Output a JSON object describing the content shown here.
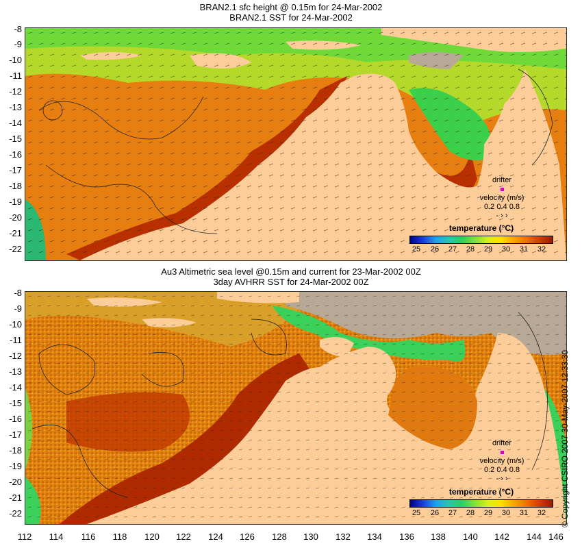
{
  "top": {
    "title_line1": "BRAN2.1 sfc height @ 0.15m for 24-Mar-2002",
    "title_line2": "BRAN2.1 SST for 24-Mar-2002",
    "y_labels": [
      "-8",
      "-9",
      "-10",
      "-11",
      "-12",
      "-13",
      "-14",
      "-15",
      "-16",
      "-17",
      "-18",
      "-19",
      "-20",
      "-21",
      "-22"
    ],
    "legend_title": "temperature (°C)",
    "legend_ticks": [
      "25",
      "26",
      "27",
      "28",
      "29",
      "30",
      "31",
      "32"
    ],
    "drifter_label": "drifter",
    "velocity_label": "velocity (m/s)",
    "velocity_values": "0.2 0.4 0.8"
  },
  "bottom": {
    "title_line1": "Au3 Altimetric sea level  @0.15m and current for 23-Mar-2002 00Z",
    "title_line2": "3day AVHRR SST for 24-Mar-2002 00Z",
    "y_labels": [
      "-8",
      "-9",
      "-10",
      "-11",
      "-12",
      "-13",
      "-14",
      "-15",
      "-16",
      "-17",
      "-18",
      "-19",
      "-20",
      "-21",
      "-22"
    ],
    "legend_title": "temperature (°C)",
    "legend_ticks": [
      "25",
      "26",
      "27",
      "28",
      "29",
      "30",
      "31",
      "32"
    ],
    "drifter_label": "drifter",
    "velocity_label": "velocity (m/s)",
    "velocity_values": "0.2 0.4 0.8"
  },
  "x_labels": [
    "112",
    "114",
    "116",
    "118",
    "120",
    "122",
    "124",
    "126",
    "128",
    "130",
    "132",
    "134",
    "136",
    "138",
    "140",
    "142",
    "144",
    "146"
  ],
  "copyright": "© Copyright CSIRO 2007  30-May-2007 12:33:30",
  "colors": {
    "land": "#fccc99",
    "no_data": "#b8a896",
    "cool": "#2bd15d",
    "warm": "#e07a10",
    "hot": "#b02800"
  }
}
